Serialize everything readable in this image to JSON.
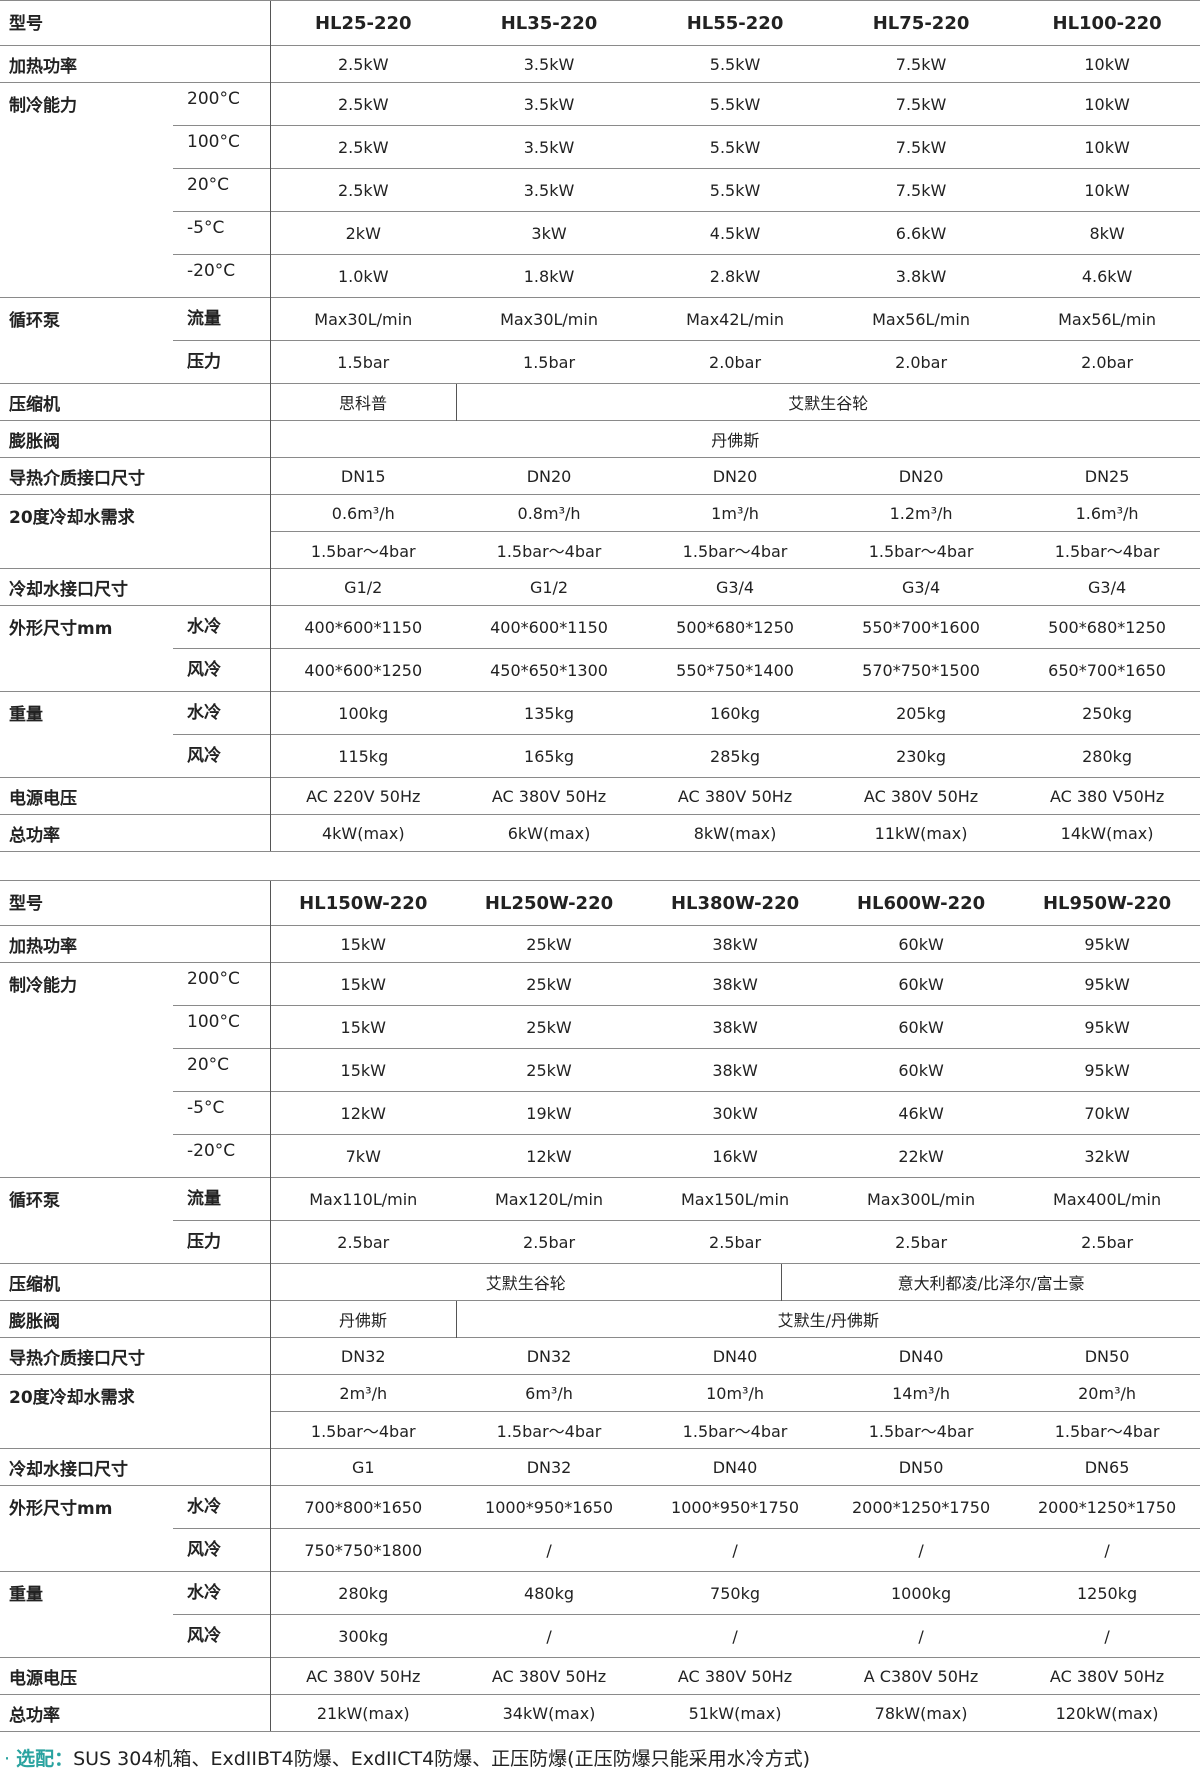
{
  "tables": [
    {
      "header_label": "型号",
      "models": [
        "HL25-220",
        "HL35-220",
        "HL55-220",
        "HL75-220",
        "HL100-220"
      ],
      "groups": [
        {
          "label": "加热功率",
          "rows": [
            {
              "sub": "",
              "cells": [
                {
                  "v": "2.5kW"
                },
                {
                  "v": "3.5kW"
                },
                {
                  "v": "5.5kW"
                },
                {
                  "v": "7.5kW"
                },
                {
                  "v": "10kW"
                }
              ]
            }
          ]
        },
        {
          "label": "制冷能力",
          "sub_plain": true,
          "rows": [
            {
              "sub": "200°C",
              "cells": [
                {
                  "v": "2.5kW"
                },
                {
                  "v": "3.5kW"
                },
                {
                  "v": "5.5kW"
                },
                {
                  "v": "7.5kW"
                },
                {
                  "v": "10kW"
                }
              ]
            },
            {
              "sub": "100°C",
              "cells": [
                {
                  "v": "2.5kW"
                },
                {
                  "v": "3.5kW"
                },
                {
                  "v": "5.5kW"
                },
                {
                  "v": "7.5kW"
                },
                {
                  "v": "10kW"
                }
              ]
            },
            {
              "sub": "20°C",
              "cells": [
                {
                  "v": "2.5kW"
                },
                {
                  "v": "3.5kW"
                },
                {
                  "v": "5.5kW"
                },
                {
                  "v": "7.5kW"
                },
                {
                  "v": "10kW"
                }
              ]
            },
            {
              "sub": "-5°C",
              "cells": [
                {
                  "v": "2kW"
                },
                {
                  "v": "3kW"
                },
                {
                  "v": "4.5kW"
                },
                {
                  "v": "6.6kW"
                },
                {
                  "v": "8kW"
                }
              ]
            },
            {
              "sub": "-20°C",
              "cells": [
                {
                  "v": "1.0kW"
                },
                {
                  "v": "1.8kW"
                },
                {
                  "v": "2.8kW"
                },
                {
                  "v": "3.8kW"
                },
                {
                  "v": "4.6kW"
                }
              ]
            }
          ]
        },
        {
          "label": "循环泵",
          "rows": [
            {
              "sub": "流量",
              "cells": [
                {
                  "v": "Max30L/min"
                },
                {
                  "v": "Max30L/min"
                },
                {
                  "v": "Max42L/min"
                },
                {
                  "v": "Max56L/min"
                },
                {
                  "v": "Max56L/min"
                }
              ]
            },
            {
              "sub": "压力",
              "cells": [
                {
                  "v": "1.5bar"
                },
                {
                  "v": "1.5bar"
                },
                {
                  "v": "2.0bar"
                },
                {
                  "v": "2.0bar"
                },
                {
                  "v": "2.0bar"
                }
              ]
            }
          ]
        },
        {
          "label": "压缩机",
          "rows": [
            {
              "sub": "",
              "cells": [
                {
                  "v": "思科普",
                  "span": 4
                },
                {
                  "v": "艾默生谷轮",
                  "span": 16
                }
              ]
            }
          ]
        },
        {
          "label": "膨胀阀",
          "rows": [
            {
              "sub": "",
              "cells": [
                {
                  "v": "丹佛斯",
                  "span": 20
                }
              ]
            }
          ]
        },
        {
          "label": "导热介质接口尺寸",
          "rows": [
            {
              "sub": "",
              "cells": [
                {
                  "v": "DN15"
                },
                {
                  "v": "DN20"
                },
                {
                  "v": "DN20"
                },
                {
                  "v": "DN20"
                },
                {
                  "v": "DN25"
                }
              ]
            }
          ]
        },
        {
          "label": "20度冷却水需求",
          "rows": [
            {
              "sub": "",
              "cells": [
                {
                  "v": "0.6m³/h"
                },
                {
                  "v": "0.8m³/h"
                },
                {
                  "v": "1m³/h"
                },
                {
                  "v": "1.2m³/h"
                },
                {
                  "v": "1.6m³/h"
                }
              ]
            },
            {
              "sub": "",
              "cells": [
                {
                  "v": "1.5bar～4bar"
                },
                {
                  "v": "1.5bar～4bar"
                },
                {
                  "v": "1.5bar～4bar"
                },
                {
                  "v": "1.5bar～4bar"
                },
                {
                  "v": "1.5bar～4bar"
                }
              ]
            }
          ]
        },
        {
          "label": "冷却水接口尺寸",
          "rows": [
            {
              "sub": "",
              "cells": [
                {
                  "v": "G1/2"
                },
                {
                  "v": "G1/2"
                },
                {
                  "v": "G3/4"
                },
                {
                  "v": "G3/4"
                },
                {
                  "v": "G3/4"
                }
              ]
            }
          ]
        },
        {
          "label": "外形尺寸mm",
          "rows": [
            {
              "sub": "水冷",
              "cells": [
                {
                  "v": "400*600*1150"
                },
                {
                  "v": "400*600*1150"
                },
                {
                  "v": "500*680*1250"
                },
                {
                  "v": "550*700*1600"
                },
                {
                  "v": "500*680*1250"
                }
              ]
            },
            {
              "sub": "风冷",
              "cells": [
                {
                  "v": "400*600*1250"
                },
                {
                  "v": "450*650*1300"
                },
                {
                  "v": "550*750*1400"
                },
                {
                  "v": "570*750*1500"
                },
                {
                  "v": "650*700*1650"
                }
              ]
            }
          ]
        },
        {
          "label": "重量",
          "rows": [
            {
              "sub": "水冷",
              "cells": [
                {
                  "v": "100kg"
                },
                {
                  "v": "135kg"
                },
                {
                  "v": "160kg"
                },
                {
                  "v": "205kg"
                },
                {
                  "v": "250kg"
                }
              ]
            },
            {
              "sub": "风冷",
              "cells": [
                {
                  "v": "115kg"
                },
                {
                  "v": "165kg"
                },
                {
                  "v": "285kg"
                },
                {
                  "v": "230kg"
                },
                {
                  "v": "280kg"
                }
              ]
            }
          ]
        },
        {
          "label": "电源电压",
          "rows": [
            {
              "sub": "",
              "cells": [
                {
                  "v": "AC 220V 50Hz"
                },
                {
                  "v": "AC 380V 50Hz"
                },
                {
                  "v": "AC 380V 50Hz"
                },
                {
                  "v": "AC 380V 50Hz"
                },
                {
                  "v": "AC 380 V50Hz"
                }
              ]
            }
          ]
        },
        {
          "label": "总功率",
          "rows": [
            {
              "sub": "",
              "cells": [
                {
                  "v": "4kW(max)"
                },
                {
                  "v": "6kW(max)"
                },
                {
                  "v": "8kW(max)"
                },
                {
                  "v": "11kW(max)"
                },
                {
                  "v": "14kW(max)"
                }
              ]
            }
          ]
        }
      ]
    },
    {
      "header_label": "型号",
      "models": [
        "HL150W-220",
        "HL250W-220",
        "HL380W-220",
        "HL600W-220",
        "HL950W-220"
      ],
      "groups": [
        {
          "label": "加热功率",
          "rows": [
            {
              "sub": "",
              "cells": [
                {
                  "v": "15kW"
                },
                {
                  "v": "25kW"
                },
                {
                  "v": "38kW"
                },
                {
                  "v": "60kW"
                },
                {
                  "v": "95kW"
                }
              ]
            }
          ]
        },
        {
          "label": "制冷能力",
          "sub_plain": true,
          "rows": [
            {
              "sub": "200°C",
              "cells": [
                {
                  "v": "15kW"
                },
                {
                  "v": "25kW"
                },
                {
                  "v": "38kW"
                },
                {
                  "v": "60kW"
                },
                {
                  "v": "95kW"
                }
              ]
            },
            {
              "sub": "100°C",
              "cells": [
                {
                  "v": "15kW"
                },
                {
                  "v": "25kW"
                },
                {
                  "v": "38kW"
                },
                {
                  "v": "60kW"
                },
                {
                  "v": "95kW"
                }
              ]
            },
            {
              "sub": "20°C",
              "cells": [
                {
                  "v": "15kW"
                },
                {
                  "v": "25kW"
                },
                {
                  "v": "38kW"
                },
                {
                  "v": "60kW"
                },
                {
                  "v": "95kW"
                }
              ]
            },
            {
              "sub": "-5°C",
              "cells": [
                {
                  "v": "12kW"
                },
                {
                  "v": "19kW"
                },
                {
                  "v": "30kW"
                },
                {
                  "v": "46kW"
                },
                {
                  "v": "70kW"
                }
              ]
            },
            {
              "sub": "-20°C",
              "cells": [
                {
                  "v": "7kW"
                },
                {
                  "v": "12kW"
                },
                {
                  "v": "16kW"
                },
                {
                  "v": "22kW"
                },
                {
                  "v": "32kW"
                }
              ]
            }
          ]
        },
        {
          "label": "循环泵",
          "rows": [
            {
              "sub": "流量",
              "cells": [
                {
                  "v": "Max110L/min"
                },
                {
                  "v": "Max120L/min"
                },
                {
                  "v": "Max150L/min"
                },
                {
                  "v": "Max300L/min"
                },
                {
                  "v": "Max400L/min"
                }
              ]
            },
            {
              "sub": "压力",
              "cells": [
                {
                  "v": "2.5bar"
                },
                {
                  "v": "2.5bar"
                },
                {
                  "v": "2.5bar"
                },
                {
                  "v": "2.5bar"
                },
                {
                  "v": "2.5bar"
                }
              ]
            }
          ]
        },
        {
          "label": "压缩机",
          "rows": [
            {
              "sub": "",
              "cells": [
                {
                  "v": "艾默生谷轮",
                  "span": 11
                },
                {
                  "v": "意大利都凌/比泽尔/富士豪",
                  "span": 9
                }
              ]
            }
          ]
        },
        {
          "label": "膨胀阀",
          "rows": [
            {
              "sub": "",
              "cells": [
                {
                  "v": "丹佛斯",
                  "span": 4
                },
                {
                  "v": "艾默生/丹佛斯",
                  "span": 16
                }
              ]
            }
          ]
        },
        {
          "label": "导热介质接口尺寸",
          "rows": [
            {
              "sub": "",
              "cells": [
                {
                  "v": "DN32"
                },
                {
                  "v": "DN32"
                },
                {
                  "v": "DN40"
                },
                {
                  "v": "DN40"
                },
                {
                  "v": "DN50"
                }
              ]
            }
          ]
        },
        {
          "label": "20度冷却水需求",
          "rows": [
            {
              "sub": "",
              "cells": [
                {
                  "v": "2m³/h"
                },
                {
                  "v": "6m³/h"
                },
                {
                  "v": "10m³/h"
                },
                {
                  "v": "14m³/h"
                },
                {
                  "v": "20m³/h"
                }
              ]
            },
            {
              "sub": "",
              "cells": [
                {
                  "v": "1.5bar～4bar"
                },
                {
                  "v": "1.5bar～4bar"
                },
                {
                  "v": "1.5bar～4bar"
                },
                {
                  "v": "1.5bar～4bar"
                },
                {
                  "v": "1.5bar～4bar"
                }
              ]
            }
          ]
        },
        {
          "label": "冷却水接口尺寸",
          "rows": [
            {
              "sub": "",
              "cells": [
                {
                  "v": "G1"
                },
                {
                  "v": "DN32"
                },
                {
                  "v": "DN40"
                },
                {
                  "v": "DN50"
                },
                {
                  "v": "DN65"
                }
              ]
            }
          ]
        },
        {
          "label": "外形尺寸mm",
          "rows": [
            {
              "sub": "水冷",
              "cells": [
                {
                  "v": "700*800*1650"
                },
                {
                  "v": "1000*950*1650"
                },
                {
                  "v": "1000*950*1750"
                },
                {
                  "v": "2000*1250*1750"
                },
                {
                  "v": "2000*1250*1750"
                }
              ]
            },
            {
              "sub": "风冷",
              "cells": [
                {
                  "v": "750*750*1800"
                },
                {
                  "v": "/"
                },
                {
                  "v": "/"
                },
                {
                  "v": "/"
                },
                {
                  "v": "/"
                }
              ]
            }
          ]
        },
        {
          "label": "重量",
          "rows": [
            {
              "sub": "水冷",
              "cells": [
                {
                  "v": "280kg"
                },
                {
                  "v": "480kg"
                },
                {
                  "v": "750kg"
                },
                {
                  "v": "1000kg"
                },
                {
                  "v": "1250kg"
                }
              ]
            },
            {
              "sub": "风冷",
              "cells": [
                {
                  "v": "300kg"
                },
                {
                  "v": "/"
                },
                {
                  "v": "/"
                },
                {
                  "v": "/"
                },
                {
                  "v": "/"
                }
              ]
            }
          ]
        },
        {
          "label": "电源电压",
          "rows": [
            {
              "sub": "",
              "cells": [
                {
                  "v": "AC 380V 50Hz"
                },
                {
                  "v": "AC 380V 50Hz"
                },
                {
                  "v": "AC 380V 50Hz"
                },
                {
                  "v": "A C380V 50Hz"
                },
                {
                  "v": "AC 380V 50Hz"
                }
              ]
            }
          ]
        },
        {
          "label": "总功率",
          "rows": [
            {
              "sub": "",
              "cells": [
                {
                  "v": "21kW(max)"
                },
                {
                  "v": "34kW(max)"
                },
                {
                  "v": "51kW(max)"
                },
                {
                  "v": "78kW(max)"
                },
                {
                  "v": "120kW(max)"
                }
              ]
            }
          ]
        }
      ]
    }
  ],
  "note": {
    "bullet": "·",
    "key": "选配：",
    "text": "SUS 304机箱、ExdIIBT4防爆、ExdIICT4防爆、正压防爆(正压防爆只能采用水冷方式)"
  },
  "colors": {
    "accent": "#2aa3a0",
    "text": "#222222",
    "rule": "#8a8a8a"
  }
}
